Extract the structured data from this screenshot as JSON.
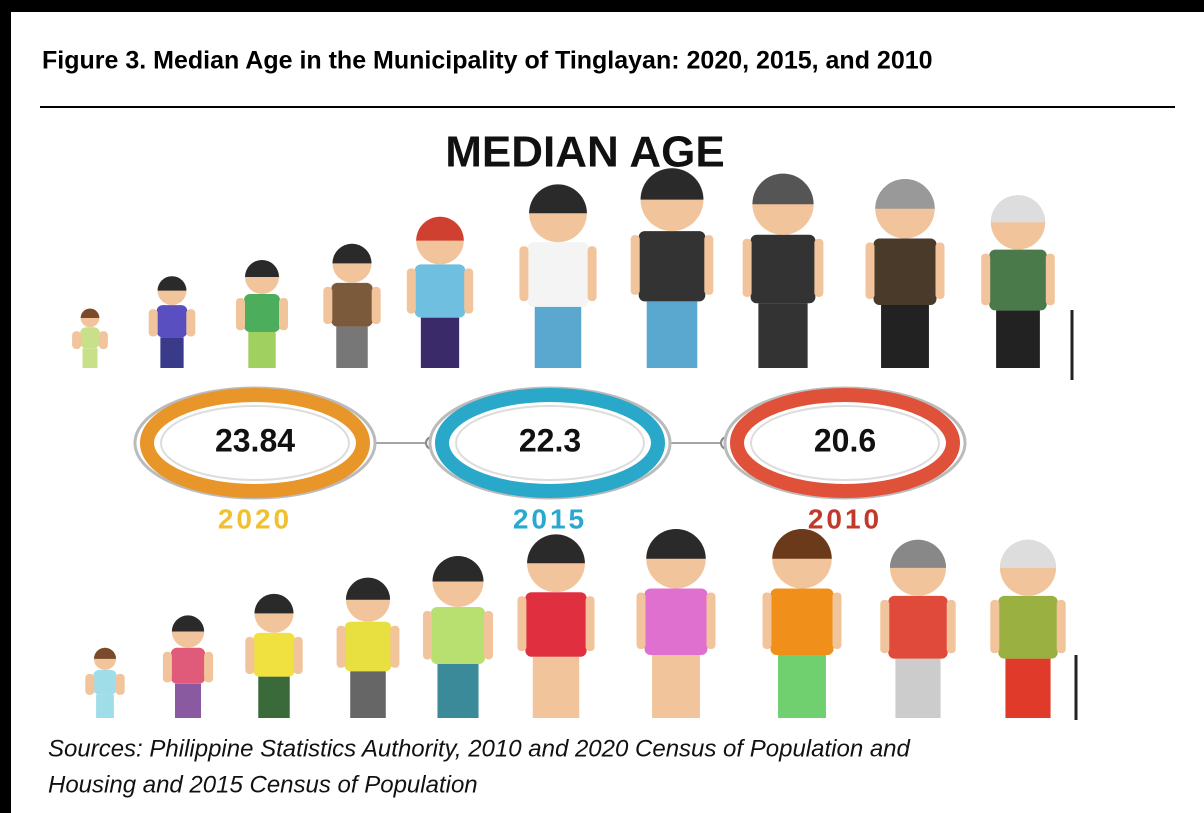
{
  "title": "Figure 3. Median Age in the Municipality of Tinglayan: 2020, 2015, and 2010",
  "heading": "MEDIAN AGE",
  "items": [
    {
      "value": 23.84,
      "year": "2020"
    },
    {
      "value": 22.3,
      "year": "2015"
    },
    {
      "value": 20.6,
      "year": "2010"
    }
  ],
  "sources": [
    "Sources: Philippine Statistics Authority, 2010 and 2020 Census of Population and",
    "Housing and 2015 Census of Population"
  ]
}
